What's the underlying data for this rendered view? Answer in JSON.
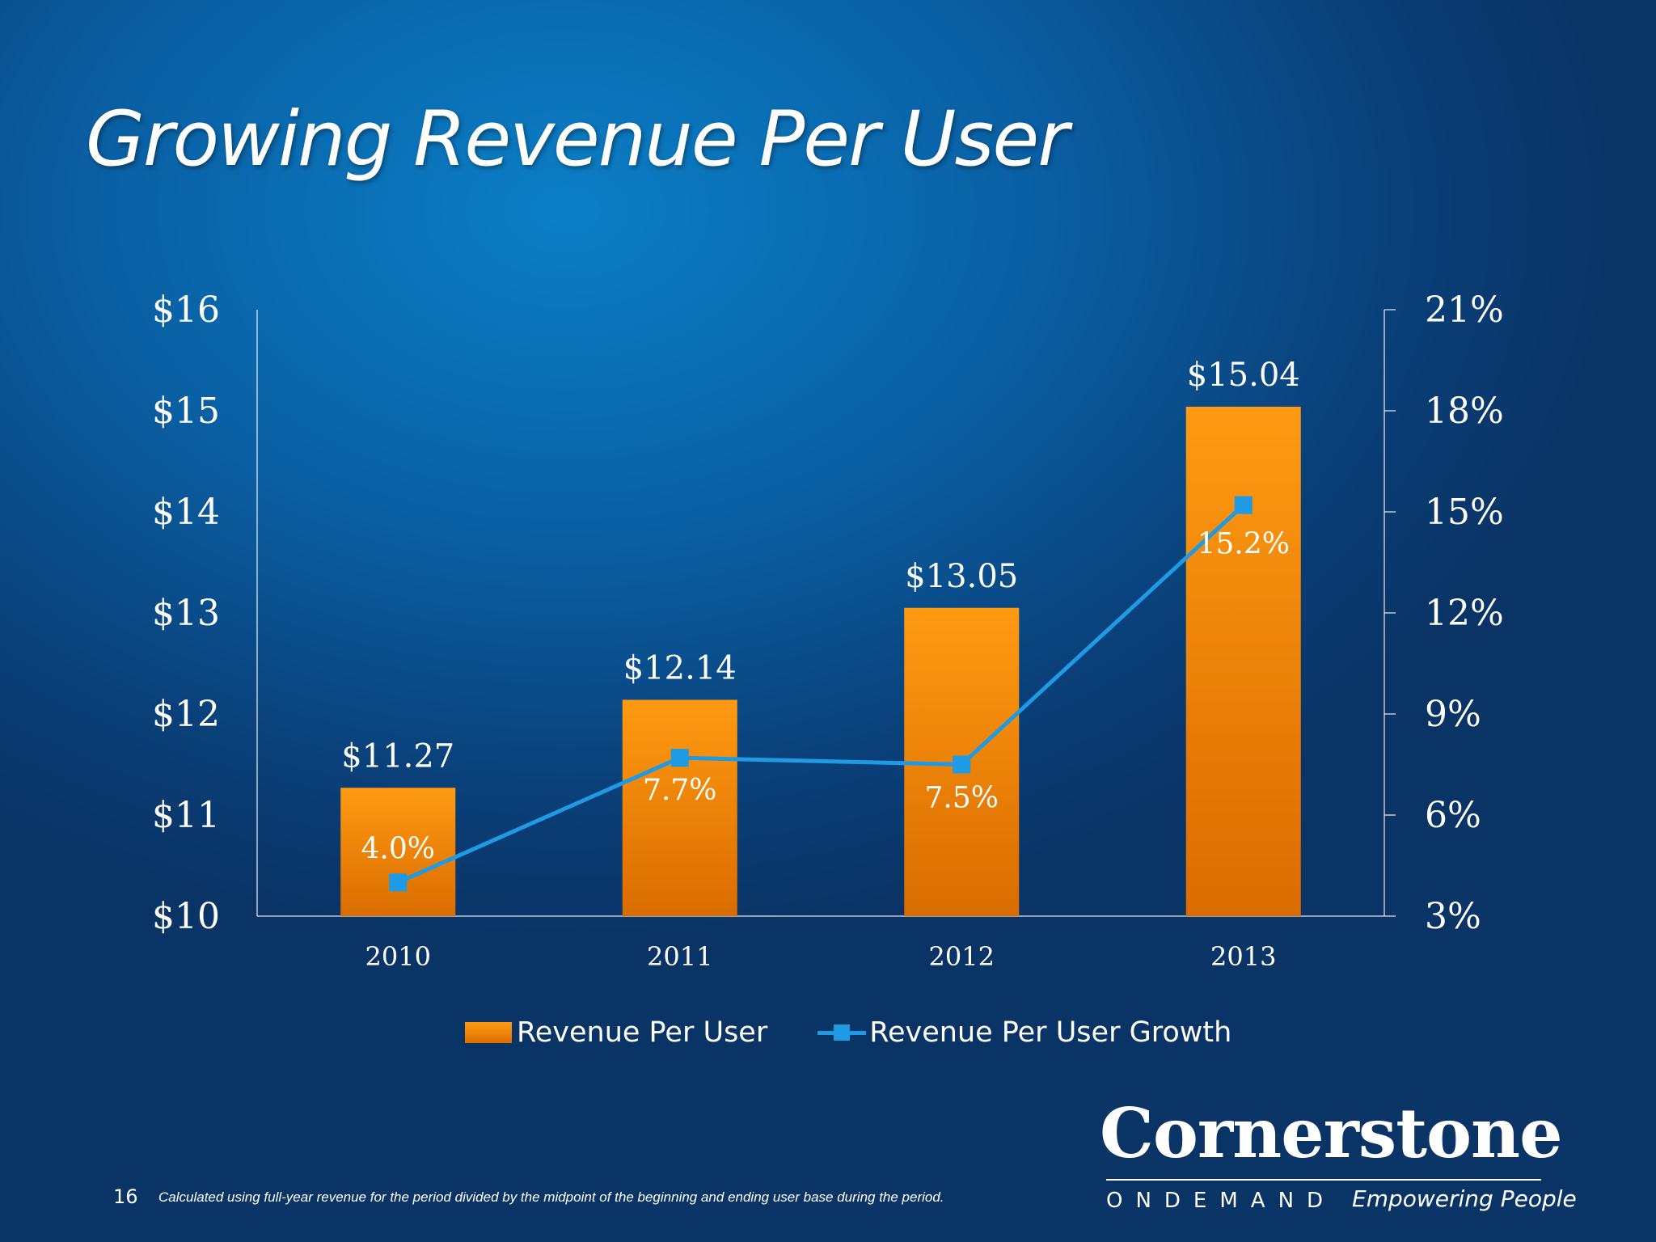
{
  "title": "Growing Revenue Per User",
  "chart_data": {
    "type": "bar",
    "categories": [
      "2010",
      "2011",
      "2012",
      "2013"
    ],
    "series": [
      {
        "name": "Revenue Per User",
        "type": "bar",
        "axis": "left",
        "values": [
          11.27,
          12.14,
          13.05,
          15.04
        ],
        "labels": [
          "$11.27",
          "$12.14",
          "$13.05",
          "$15.04"
        ],
        "color": "#f58a00"
      },
      {
        "name": "Revenue Per User Growth",
        "type": "line",
        "axis": "right",
        "values": [
          4.0,
          7.7,
          7.5,
          15.2
        ],
        "labels": [
          "4.0%",
          "7.7%",
          "7.5%",
          "15.2%"
        ],
        "color": "#1f9ae4"
      }
    ],
    "y_left": {
      "min": 10,
      "max": 16,
      "ticks": [
        "$10",
        "$11",
        "$12",
        "$13",
        "$14",
        "$15",
        "$16"
      ]
    },
    "y_right": {
      "min": 3,
      "max": 21,
      "ticks": [
        "3%",
        "6%",
        "9%",
        "12%",
        "15%",
        "18%",
        "21%"
      ]
    },
    "legend_position": "bottom",
    "grid": false
  },
  "legend": {
    "bar_label": "Revenue Per User",
    "line_label": "Revenue Per User Growth"
  },
  "footer": {
    "page_number": "16",
    "footnote": "Calculated using full-year revenue for the period divided by the midpoint of the beginning and ending user base during the period."
  },
  "logo": {
    "name": "Cornerstone",
    "sub": "ONDEMAND",
    "tagline": "Empowering People"
  }
}
